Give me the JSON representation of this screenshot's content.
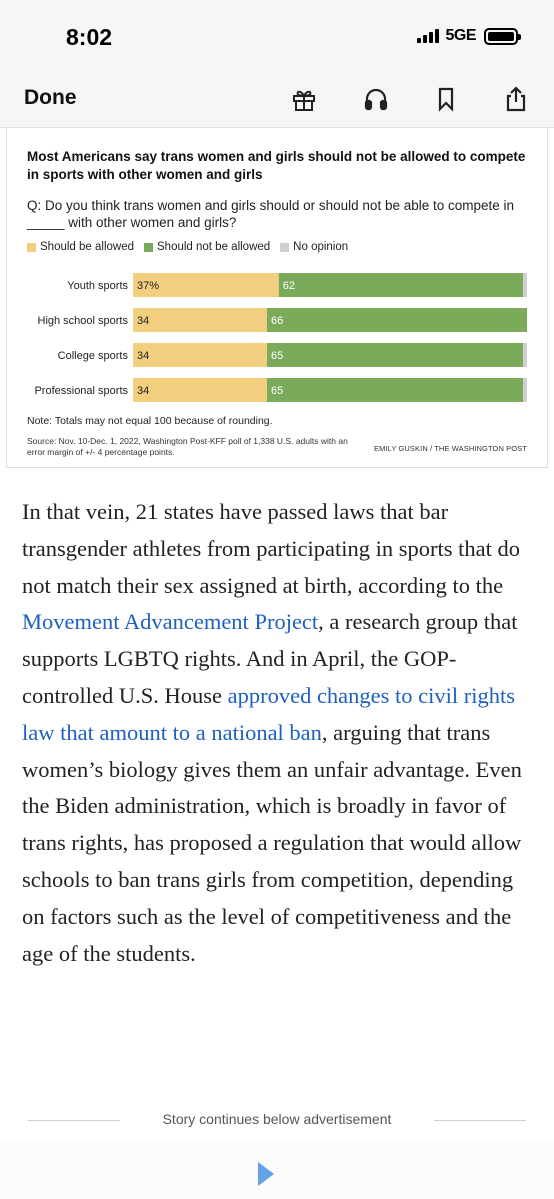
{
  "status_bar": {
    "time": "8:02",
    "network": "5GE"
  },
  "toolbar": {
    "done_label": "Done",
    "icons": [
      "gift-icon",
      "headphones-icon",
      "bookmark-icon",
      "share-icon"
    ]
  },
  "chart_data": {
    "type": "bar",
    "orientation": "horizontal",
    "stacked": true,
    "title": "Most Americans say trans women and girls should not be allowed to compete in sports with other women and girls",
    "question": "Q: Do you think trans women and girls should or should not be able to compete in _____ with other women and girls?",
    "categories": [
      "Youth sports",
      "High school sports",
      "College sports",
      "Professional sports"
    ],
    "series": [
      {
        "name": "Should be allowed",
        "color": "#f2cf7e",
        "values": [
          37,
          34,
          34,
          34
        ],
        "labels": [
          "37%",
          "34",
          "34",
          "34"
        ]
      },
      {
        "name": "Should not be allowed",
        "color": "#7bab5a",
        "values": [
          62,
          66,
          65,
          65
        ],
        "labels": [
          "62",
          "66",
          "65",
          "65"
        ]
      },
      {
        "name": "No opinion",
        "color": "#cfcfcf",
        "values": [
          1,
          0,
          1,
          1
        ],
        "labels": [
          "",
          "",
          "",
          ""
        ]
      }
    ],
    "xlim": [
      0,
      100
    ],
    "grid": false,
    "legend_position": "top-left",
    "note": "Note: Totals may not equal 100 because of rounding.",
    "source": "Source: Nov. 10-Dec. 1, 2022, Washington Post-KFF poll of 1,338 U.S. adults with an error margin of +/- 4 percentage points.",
    "credit": "EMILY GUSKIN / THE WASHINGTON POST"
  },
  "article": {
    "p1_a": "In that vein, 21 states have passed laws that bar transgender athletes from participating in sports that do not match their sex as­signed at birth, according to the ",
    "link1": "Movement Advancement Project",
    "p1_b": ", a research group that supports LGBTQ rights. And in April, the GOP-controlled U.S. House ",
    "link2": "approved changes to civil rights law that amount to a national ban",
    "p1_c": ", arguing that trans women’s bi­ology gives them an unfair advantage. Even the Biden administration, which is broadly in favor of trans rights, has proposed a regu­lation that would allow schools to ban trans girls from competition, depending on factors such as the level of competitiveness and the age of the students."
  },
  "ad": {
    "label": "Story continues below advertisement"
  }
}
